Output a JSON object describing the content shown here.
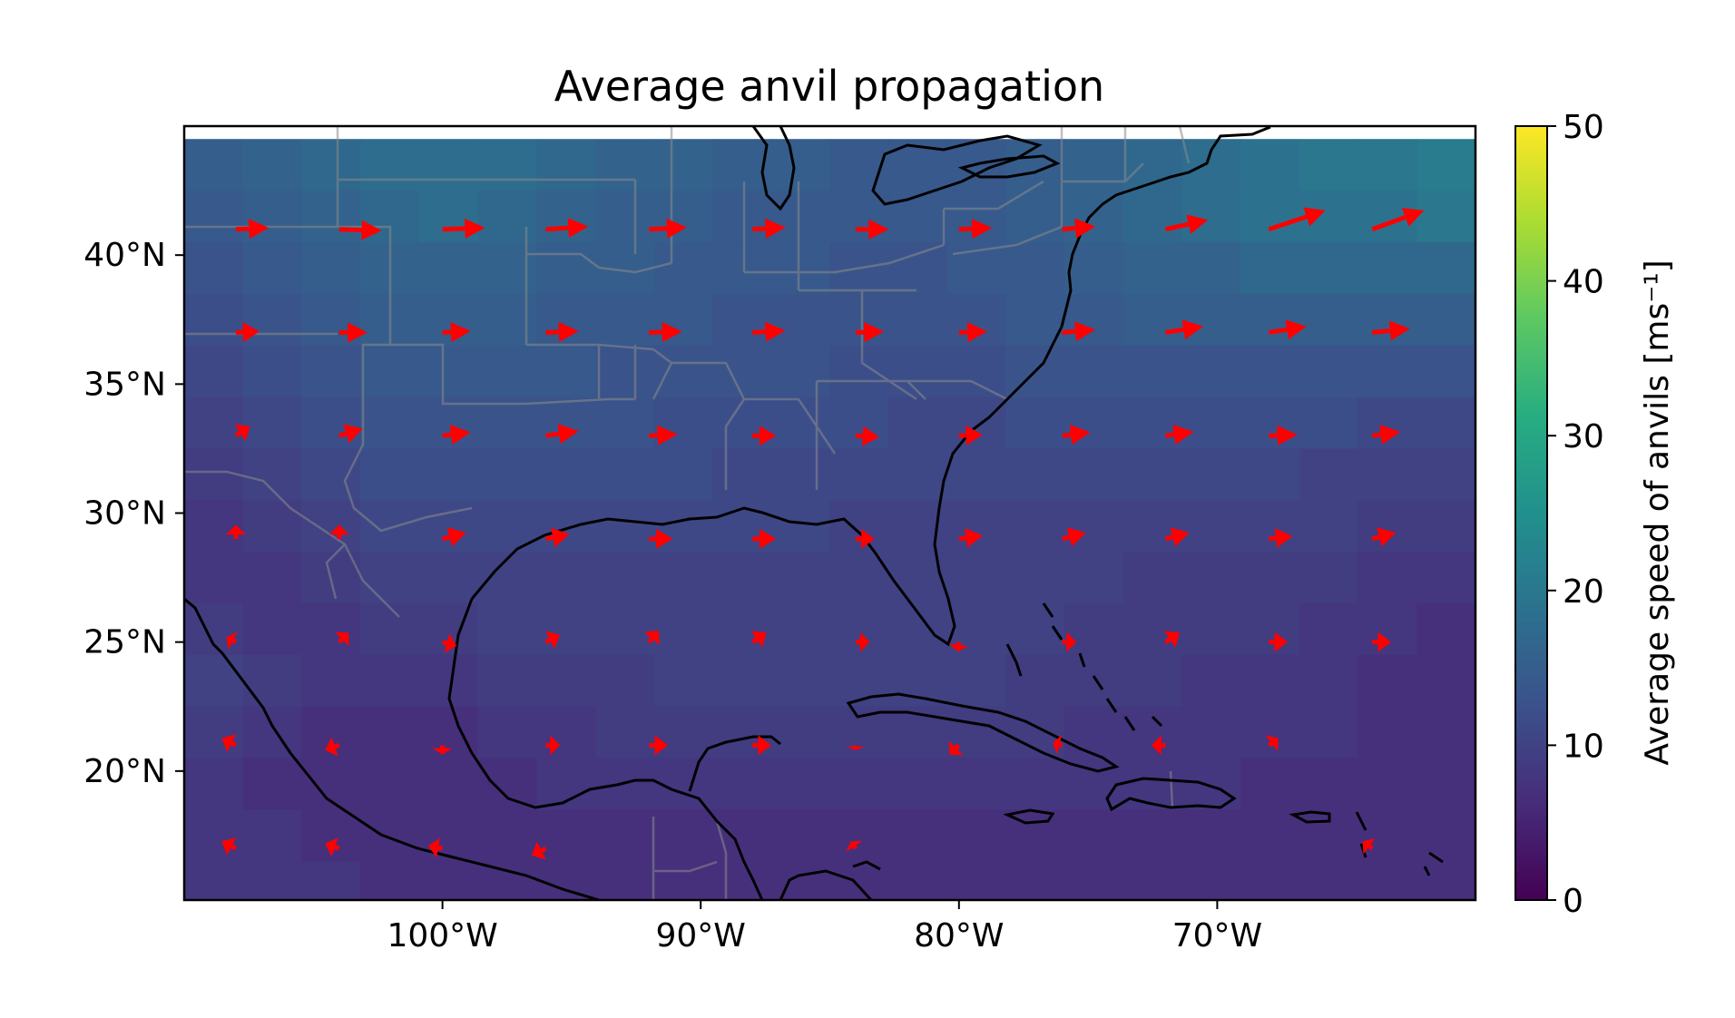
{
  "title": "Average anvil propagation",
  "map": {
    "lon_range": [
      -110,
      -60
    ],
    "lat_range": [
      15,
      45
    ],
    "x_ticks": [
      {
        "value": -100,
        "label": "100°W"
      },
      {
        "value": -90,
        "label": "90°W"
      },
      {
        "value": -80,
        "label": "80°W"
      },
      {
        "value": -70,
        "label": "70°W"
      }
    ],
    "y_ticks": [
      {
        "value": 40,
        "label": "40°N"
      },
      {
        "value": 35,
        "label": "35°N"
      },
      {
        "value": 30,
        "label": "30°N"
      },
      {
        "value": 25,
        "label": "25°N"
      },
      {
        "value": 20,
        "label": "20°N"
      }
    ],
    "arrow_color": "#ff0000",
    "coastline_color": "#000000",
    "border_color": "#8a8a8a"
  },
  "colorbar": {
    "label": "Average speed of anvils [ms⁻¹]",
    "min": 0,
    "max": 50,
    "ticks": [
      {
        "value": 0,
        "label": "0"
      },
      {
        "value": 10,
        "label": "10"
      },
      {
        "value": 20,
        "label": "20"
      },
      {
        "value": 30,
        "label": "30"
      },
      {
        "value": 40,
        "label": "40"
      },
      {
        "value": 50,
        "label": "50"
      }
    ],
    "colormap": "viridis"
  },
  "chart_data": {
    "type": "heatmap",
    "title": "Average anvil propagation",
    "xlabel": "",
    "ylabel": "",
    "xlim": [
      -110,
      -60
    ],
    "ylim": [
      15,
      45
    ],
    "x_units": "longitude (°)",
    "y_units": "latitude (°)",
    "speed_field": {
      "description_rows": "latitude bands from north to south",
      "rows": [
        {
          "lat": 43.5,
          "speeds": [
            15,
            16,
            17,
            18,
            18,
            18,
            17,
            16,
            16,
            15,
            15,
            14,
            14,
            14,
            15,
            16,
            17,
            18,
            19,
            20,
            20,
            21
          ]
        },
        {
          "lat": 41.5,
          "speeds": [
            14,
            15,
            16,
            17,
            18,
            17,
            16,
            15,
            15,
            14,
            14,
            14,
            14,
            14,
            15,
            16,
            17,
            18,
            19,
            19,
            19,
            20
          ]
        },
        {
          "lat": 39.5,
          "speeds": [
            13,
            14,
            15,
            16,
            16,
            16,
            15,
            15,
            14,
            14,
            14,
            13,
            13,
            14,
            14,
            15,
            16,
            16,
            17,
            17,
            17,
            17
          ]
        },
        {
          "lat": 37.5,
          "speeds": [
            12,
            13,
            14,
            15,
            15,
            15,
            14,
            14,
            14,
            13,
            13,
            13,
            13,
            13,
            14,
            14,
            15,
            15,
            15,
            15,
            15,
            15
          ]
        },
        {
          "lat": 35.5,
          "speeds": [
            11,
            12,
            13,
            14,
            14,
            14,
            14,
            13,
            13,
            13,
            13,
            12,
            12,
            12,
            13,
            13,
            13,
            13,
            13,
            13,
            13,
            13
          ]
        },
        {
          "lat": 33.5,
          "speeds": [
            10,
            11,
            12,
            13,
            13,
            13,
            13,
            13,
            12,
            12,
            12,
            12,
            11,
            11,
            12,
            12,
            12,
            12,
            12,
            12,
            11,
            11
          ]
        },
        {
          "lat": 31.5,
          "speeds": [
            9,
            10,
            11,
            12,
            12,
            12,
            12,
            12,
            12,
            11,
            11,
            11,
            11,
            11,
            11,
            11,
            11,
            11,
            11,
            10,
            10,
            10
          ]
        },
        {
          "lat": 29.5,
          "speeds": [
            8,
            9,
            10,
            11,
            11,
            11,
            11,
            11,
            11,
            11,
            11,
            10,
            10,
            10,
            10,
            10,
            10,
            10,
            10,
            10,
            9,
            9
          ]
        },
        {
          "lat": 27.5,
          "speeds": [
            8,
            8,
            9,
            10,
            10,
            10,
            10,
            10,
            10,
            10,
            10,
            10,
            10,
            10,
            10,
            10,
            9,
            9,
            9,
            9,
            8,
            8
          ]
        },
        {
          "lat": 25.5,
          "speeds": [
            9,
            8,
            8,
            9,
            9,
            10,
            10,
            10,
            10,
            10,
            10,
            10,
            10,
            10,
            10,
            9,
            9,
            9,
            9,
            8,
            8,
            7
          ]
        },
        {
          "lat": 23.5,
          "speeds": [
            10,
            9,
            8,
            8,
            8,
            9,
            9,
            9,
            10,
            10,
            10,
            10,
            10,
            10,
            9,
            9,
            9,
            8,
            8,
            8,
            7,
            7
          ]
        },
        {
          "lat": 21.5,
          "speeds": [
            9,
            8,
            7,
            7,
            7,
            8,
            8,
            9,
            9,
            9,
            9,
            9,
            9,
            9,
            9,
            8,
            8,
            8,
            8,
            8,
            7,
            7
          ]
        },
        {
          "lat": 19.5,
          "speeds": [
            8,
            7,
            7,
            7,
            7,
            7,
            8,
            8,
            8,
            8,
            8,
            8,
            8,
            8,
            8,
            8,
            8,
            8,
            7,
            7,
            7,
            7
          ]
        },
        {
          "lat": 17.5,
          "speeds": [
            8,
            8,
            7,
            7,
            7,
            7,
            7,
            7,
            7,
            7,
            7,
            7,
            7,
            7,
            7,
            7,
            7,
            7,
            7,
            7,
            7,
            7
          ]
        },
        {
          "lat": 15.5,
          "speeds": [
            8,
            8,
            8,
            7,
            7,
            7,
            7,
            7,
            7,
            7,
            7,
            7,
            7,
            7,
            7,
            7,
            7,
            7,
            7,
            7,
            7,
            7
          ]
        }
      ],
      "lon_start": -110,
      "lon_step": 2.2727
    },
    "vectors": {
      "description": "Average anvil propagation vectors (u eastward, v northward, m/s)",
      "lons": [
        -108,
        -104,
        -100,
        -96,
        -92,
        -88,
        -84,
        -80,
        -76,
        -72,
        -68,
        -64
      ],
      "rows": [
        {
          "lat": 41,
          "u": [
            7,
            9,
            9,
            9,
            8,
            7,
            7,
            7,
            7,
            9,
            12,
            11
          ],
          "v": [
            0.3,
            -0.3,
            0.3,
            0.6,
            0.4,
            0.4,
            0,
            0.3,
            0.6,
            2,
            4,
            4
          ]
        },
        {
          "lat": 37,
          "u": [
            5,
            6,
            6,
            7,
            7,
            7,
            6,
            6,
            7,
            8,
            8,
            8
          ],
          "v": [
            0.2,
            0,
            0.3,
            0.3,
            0.2,
            0.4,
            0.2,
            0.2,
            0.6,
            1.3,
            1.3,
            0.8
          ]
        },
        {
          "lat": 33,
          "u": [
            3,
            5,
            6,
            7,
            6,
            5,
            5,
            5,
            6,
            6,
            6,
            6
          ],
          "v": [
            2,
            1.5,
            0.7,
            1,
            0.3,
            0,
            -0.3,
            0.2,
            0.7,
            0.8,
            0.2,
            0.8
          ]
        },
        {
          "lat": 29,
          "u": [
            0,
            0,
            5,
            5,
            5,
            5,
            4,
            5,
            5,
            5,
            5,
            5
          ],
          "v": [
            3,
            3,
            1.3,
            1,
            0,
            0,
            0,
            0.7,
            1.3,
            1.3,
            0.6,
            1.3
          ]
        },
        {
          "lat": 25,
          "u": [
            -2,
            2,
            3,
            3,
            2,
            3,
            3,
            -0.3,
            3,
            3,
            4,
            4
          ],
          "v": [
            1,
            2,
            -0.8,
            1.5,
            2.5,
            2,
            0,
            -2,
            0,
            2,
            0,
            0
          ]
        },
        {
          "lat": 21,
          "u": [
            -3,
            -3,
            0,
            3,
            4,
            4,
            0,
            -2,
            -2,
            -3,
            2,
            0
          ],
          "v": [
            1.5,
            -1,
            -2,
            0,
            0,
            0,
            -1,
            -2,
            0.5,
            0,
            1.5,
            0
          ]
        },
        {
          "lat": 17,
          "u": [
            -3,
            -3,
            -3,
            -3,
            0,
            0,
            -1,
            0,
            0,
            0,
            0,
            -2
          ],
          "v": [
            1.5,
            1,
            0.5,
            -1.5,
            0,
            0,
            1.5,
            0,
            0,
            0,
            0,
            1.5
          ]
        }
      ]
    },
    "colorbar": {
      "label": "Average speed of anvils [ms⁻¹]",
      "range": [
        0,
        50
      ],
      "ticks": [
        0,
        10,
        20,
        30,
        40,
        50
      ],
      "colormap": "viridis"
    }
  }
}
